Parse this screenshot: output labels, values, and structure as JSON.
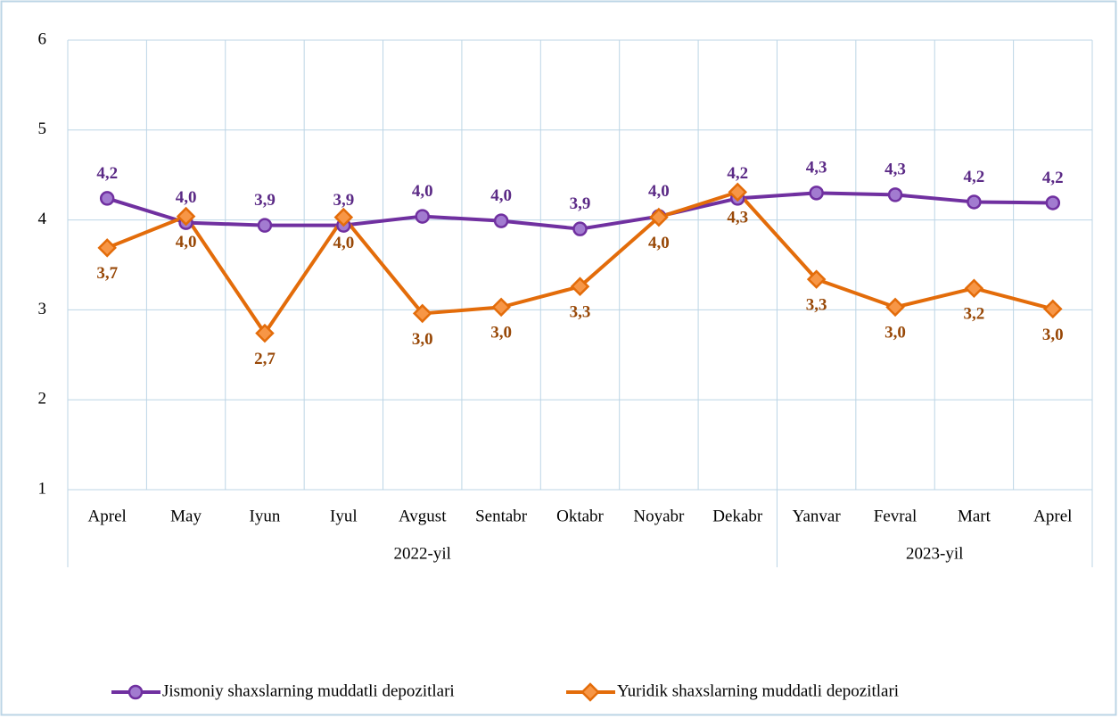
{
  "chart_data": {
    "type": "line",
    "categories": [
      "Aprel",
      "May",
      "Iyun",
      "Iyul",
      "Avgust",
      "Sentabr",
      "Oktabr",
      "Noyabr",
      "Dekabr",
      "Yanvar",
      "Fevral",
      "Mart",
      "Aprel"
    ],
    "category_groups": [
      {
        "label": "2022-yil",
        "span": 9
      },
      {
        "label": "2023-yil",
        "span": 4
      }
    ],
    "series": [
      {
        "name": "Jismoniy shaxslarning muddatli depozitlari",
        "color": "#7030a0",
        "marker": "circle",
        "values": [
          4.24,
          3.97,
          3.94,
          3.94,
          4.04,
          3.99,
          3.9,
          4.04,
          4.24,
          4.3,
          4.28,
          4.2,
          4.19
        ],
        "value_labels": [
          "4,2",
          "4,0",
          "3,9",
          "3,9",
          "4,0",
          "4,0",
          "3,9",
          "4,0",
          "4,2",
          "4,3",
          "4,3",
          "4,2",
          "4,2"
        ]
      },
      {
        "name": "Yuridik shaxslarning muddatli depozitlari",
        "color": "#e36c0a",
        "marker": "diamond",
        "values": [
          3.69,
          4.04,
          2.74,
          4.03,
          2.96,
          3.03,
          3.26,
          4.03,
          4.31,
          3.34,
          3.03,
          3.24,
          3.01
        ],
        "value_labels": [
          "3,7",
          "4,0",
          "2,7",
          "4,0",
          "3,0",
          "3,0",
          "3,3",
          "4,0",
          "4,3",
          "3,3",
          "3,0",
          "3,2",
          "3,0"
        ]
      }
    ],
    "ylim": [
      1,
      6
    ],
    "yticks": [
      1,
      2,
      3,
      4,
      5,
      6
    ],
    "grid": true
  }
}
